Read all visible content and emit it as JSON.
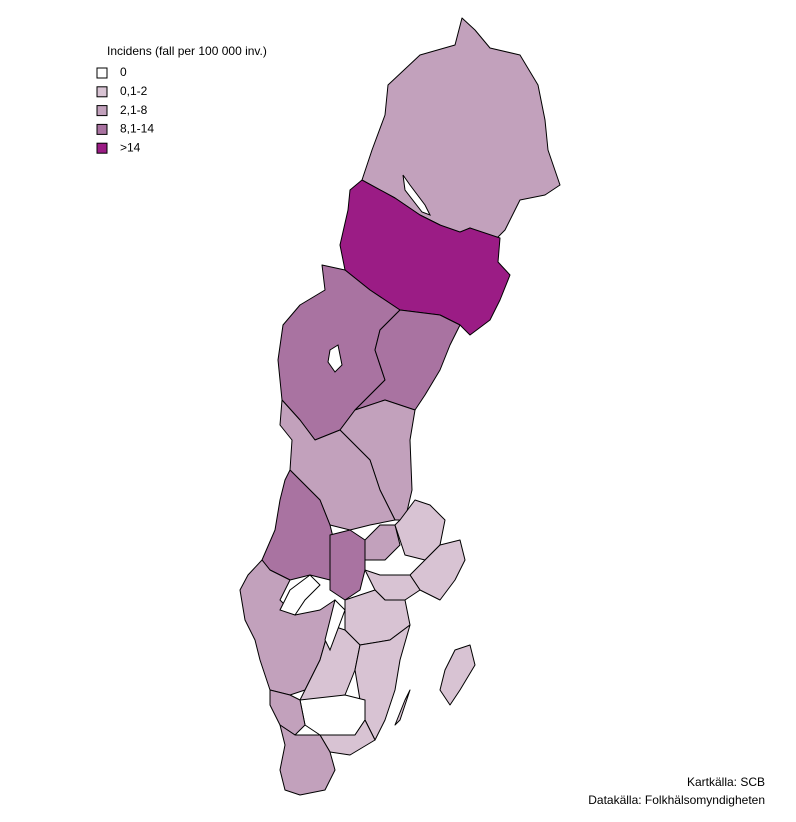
{
  "legend": {
    "title": "Incidens (fall per 100 000 inv.)",
    "items": [
      {
        "label": "0",
        "color": "#ffffff"
      },
      {
        "label": "0,1-2",
        "color": "#d8c3d3"
      },
      {
        "label": "2,1-8",
        "color": "#c2a1bc"
      },
      {
        "label": "8,1-14",
        "color": "#a973a1"
      },
      {
        "label": ">14",
        "color": "#9b1c85"
      }
    ]
  },
  "credits": [
    "Kartkälla: SCB",
    "Datakälla: Folkhälsomyndigheten"
  ]
}
